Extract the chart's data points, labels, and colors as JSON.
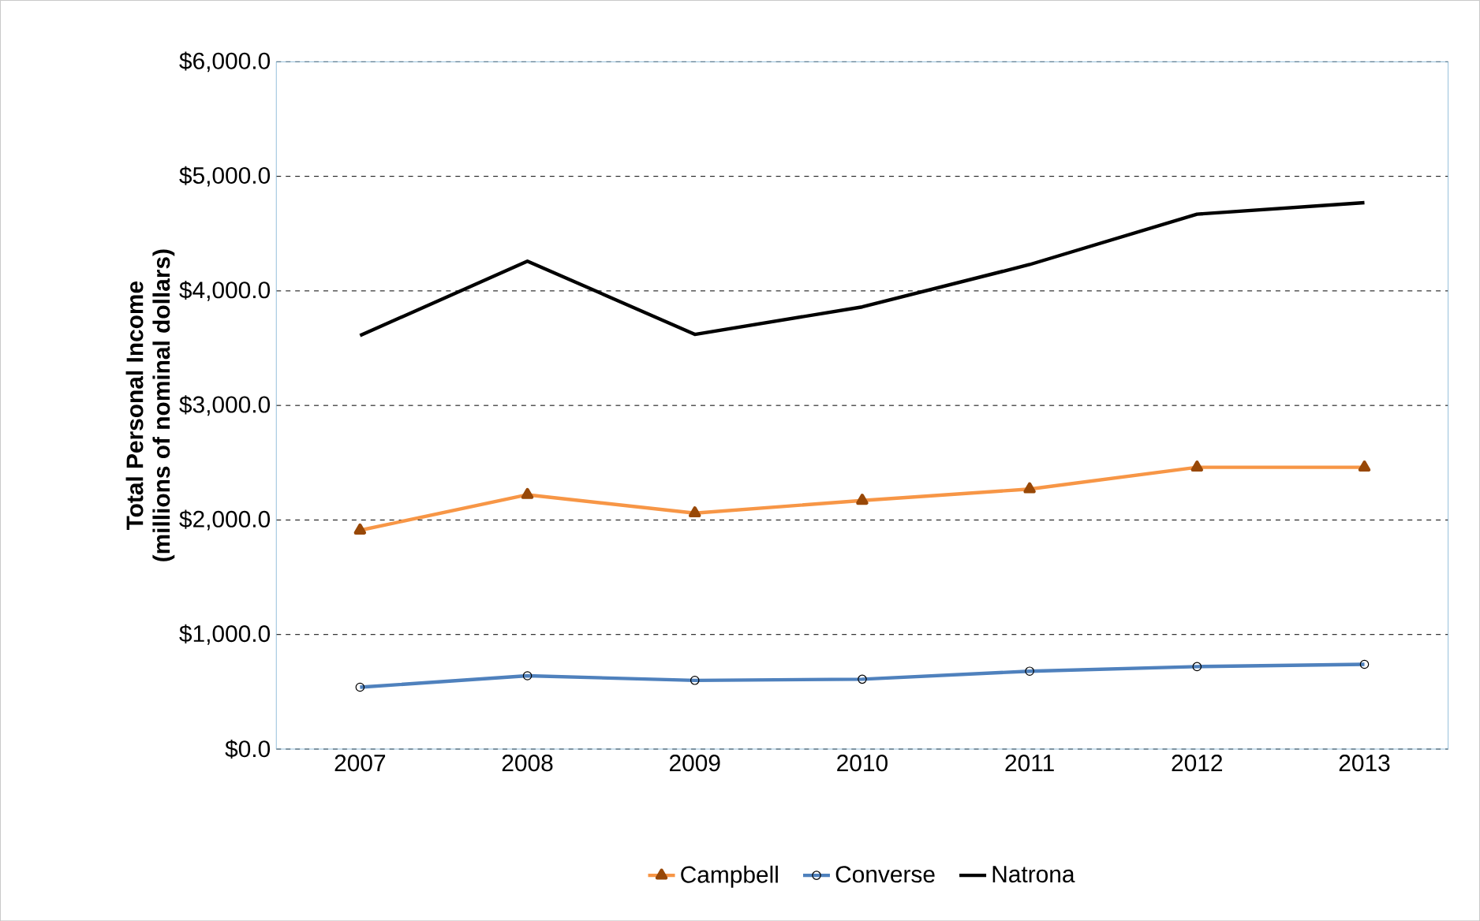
{
  "chart_data": {
    "type": "line",
    "ylabel": "Total Personal Income\n(millions of nominal dollars)",
    "categories": [
      "2007",
      "2008",
      "2009",
      "2010",
      "2011",
      "2012",
      "2013"
    ],
    "series": [
      {
        "name": "Campbell",
        "color": "#f79646",
        "marker": "triangle",
        "values": [
          1910,
          2220,
          2060,
          2170,
          2270,
          2460,
          2460
        ]
      },
      {
        "name": "Converse",
        "color": "#4f81bd",
        "marker": "circle",
        "values": [
          540,
          640,
          600,
          610,
          680,
          720,
          740
        ]
      },
      {
        "name": "Natrona",
        "color": "#000000",
        "marker": "none",
        "values": [
          3610,
          4260,
          3620,
          3860,
          4230,
          4670,
          4770
        ]
      }
    ],
    "ylim": [
      0,
      6000
    ],
    "yticks": [
      {
        "value": 0,
        "label": "$0.0"
      },
      {
        "value": 1000,
        "label": "$1,000.0"
      },
      {
        "value": 2000,
        "label": "$2,000.0"
      },
      {
        "value": 3000,
        "label": "$3,000.0"
      },
      {
        "value": 4000,
        "label": "$4,000.0"
      },
      {
        "value": 5000,
        "label": "$5,000.0"
      },
      {
        "value": 6000,
        "label": "$6,000.0"
      }
    ],
    "grid": "y",
    "legend": "bottom"
  }
}
